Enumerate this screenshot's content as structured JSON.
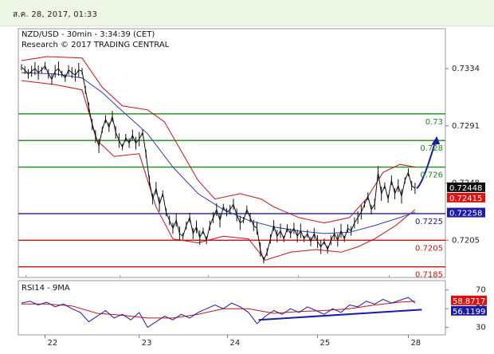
{
  "header": {
    "date_time": "ส.ค. 28, 2017, 01:33"
  },
  "chart_data": [
    {
      "type": "line",
      "title": "NZD/USD - 30min - 3:34:39 (CET)",
      "subtitle": "Research © 2017 TRADING CENTRAL",
      "x_ticks": [
        "22",
        "23",
        "24",
        "25",
        "28"
      ],
      "y_ticks": [
        "0.7334",
        "0.7291",
        "0.7248",
        "0.7205"
      ],
      "ylim": [
        0.7177,
        0.7364
      ],
      "levels": [
        {
          "label": "0.73",
          "value": 0.73,
          "color": "#1a8a1a"
        },
        {
          "label": "0.728",
          "value": 0.728,
          "color": "#1a8a1a"
        },
        {
          "label": "0.726",
          "value": 0.726,
          "color": "#1a8a1a"
        },
        {
          "label": "0.7225",
          "value": 0.7225,
          "color": "#1c1ca8"
        },
        {
          "label": "0.7205",
          "value": 0.7205,
          "color": "#cc1111"
        },
        {
          "label": "0.7185",
          "value": 0.7185,
          "color": "#cc1111"
        }
      ],
      "price_tags": [
        {
          "label": "0.72448",
          "value": 0.72448,
          "bg": "#111111"
        },
        {
          "label": "0.72415",
          "value": 0.72415,
          "bg": "#dd1111"
        },
        {
          "label": "0.72258",
          "value": 0.72258,
          "bg": "#1c1ca8"
        }
      ],
      "price_series": [
        {
          "x": 0,
          "y": 0.7335
        },
        {
          "x": 4,
          "y": 0.7333
        },
        {
          "x": 8,
          "y": 0.733
        },
        {
          "x": 12,
          "y": 0.7332
        },
        {
          "x": 16,
          "y": 0.7334
        },
        {
          "x": 20,
          "y": 0.7331
        },
        {
          "x": 24,
          "y": 0.7333
        },
        {
          "x": 28,
          "y": 0.7336
        },
        {
          "x": 32,
          "y": 0.733
        },
        {
          "x": 36,
          "y": 0.7326
        },
        {
          "x": 40,
          "y": 0.7332
        },
        {
          "x": 44,
          "y": 0.7334
        },
        {
          "x": 48,
          "y": 0.733
        },
        {
          "x": 52,
          "y": 0.7327
        },
        {
          "x": 56,
          "y": 0.7333
        },
        {
          "x": 60,
          "y": 0.7331
        },
        {
          "x": 64,
          "y": 0.7329
        },
        {
          "x": 68,
          "y": 0.7333
        },
        {
          "x": 72,
          "y": 0.7332
        },
        {
          "x": 76,
          "y": 0.7318
        },
        {
          "x": 80,
          "y": 0.7305
        },
        {
          "x": 84,
          "y": 0.7292
        },
        {
          "x": 88,
          "y": 0.7283
        },
        {
          "x": 92,
          "y": 0.7276
        },
        {
          "x": 96,
          "y": 0.7288
        },
        {
          "x": 100,
          "y": 0.7296
        },
        {
          "x": 104,
          "y": 0.729
        },
        {
          "x": 108,
          "y": 0.7298
        },
        {
          "x": 112,
          "y": 0.7286
        },
        {
          "x": 116,
          "y": 0.728
        },
        {
          "x": 120,
          "y": 0.7275
        },
        {
          "x": 124,
          "y": 0.7282
        },
        {
          "x": 128,
          "y": 0.7278
        },
        {
          "x": 132,
          "y": 0.7284
        },
        {
          "x": 136,
          "y": 0.7278
        },
        {
          "x": 140,
          "y": 0.7281
        },
        {
          "x": 144,
          "y": 0.7286
        },
        {
          "x": 148,
          "y": 0.727
        },
        {
          "x": 152,
          "y": 0.725
        },
        {
          "x": 156,
          "y": 0.7236
        },
        {
          "x": 160,
          "y": 0.7244
        },
        {
          "x": 164,
          "y": 0.7232
        },
        {
          "x": 168,
          "y": 0.724
        },
        {
          "x": 172,
          "y": 0.7226
        },
        {
          "x": 176,
          "y": 0.722
        },
        {
          "x": 180,
          "y": 0.7214
        },
        {
          "x": 184,
          "y": 0.722
        },
        {
          "x": 188,
          "y": 0.721
        },
        {
          "x": 192,
          "y": 0.7208
        },
        {
          "x": 196,
          "y": 0.7216
        },
        {
          "x": 200,
          "y": 0.7222
        },
        {
          "x": 204,
          "y": 0.721
        },
        {
          "x": 208,
          "y": 0.7215
        },
        {
          "x": 212,
          "y": 0.7207
        },
        {
          "x": 216,
          "y": 0.7212
        },
        {
          "x": 220,
          "y": 0.7205
        },
        {
          "x": 224,
          "y": 0.7216
        },
        {
          "x": 228,
          "y": 0.7222
        },
        {
          "x": 232,
          "y": 0.7228
        },
        {
          "x": 236,
          "y": 0.722
        },
        {
          "x": 240,
          "y": 0.723
        },
        {
          "x": 244,
          "y": 0.7226
        },
        {
          "x": 248,
          "y": 0.7228
        },
        {
          "x": 252,
          "y": 0.7232
        },
        {
          "x": 256,
          "y": 0.7224
        },
        {
          "x": 260,
          "y": 0.7218
        },
        {
          "x": 264,
          "y": 0.722
        },
        {
          "x": 268,
          "y": 0.7228
        },
        {
          "x": 272,
          "y": 0.7222
        },
        {
          "x": 276,
          "y": 0.7216
        },
        {
          "x": 280,
          "y": 0.7214
        },
        {
          "x": 284,
          "y": 0.7198
        },
        {
          "x": 288,
          "y": 0.719
        },
        {
          "x": 292,
          "y": 0.7196
        },
        {
          "x": 296,
          "y": 0.7206
        },
        {
          "x": 300,
          "y": 0.7216
        },
        {
          "x": 304,
          "y": 0.7208
        },
        {
          "x": 308,
          "y": 0.7212
        },
        {
          "x": 312,
          "y": 0.7206
        },
        {
          "x": 316,
          "y": 0.7214
        },
        {
          "x": 320,
          "y": 0.721
        },
        {
          "x": 324,
          "y": 0.7214
        },
        {
          "x": 328,
          "y": 0.7208
        },
        {
          "x": 332,
          "y": 0.7212
        },
        {
          "x": 336,
          "y": 0.7206
        },
        {
          "x": 340,
          "y": 0.721
        },
        {
          "x": 344,
          "y": 0.7204
        },
        {
          "x": 348,
          "y": 0.721
        },
        {
          "x": 352,
          "y": 0.7204
        },
        {
          "x": 356,
          "y": 0.72
        },
        {
          "x": 360,
          "y": 0.7204
        },
        {
          "x": 364,
          "y": 0.7198
        },
        {
          "x": 368,
          "y": 0.7205
        },
        {
          "x": 372,
          "y": 0.721
        },
        {
          "x": 376,
          "y": 0.7205
        },
        {
          "x": 380,
          "y": 0.7212
        },
        {
          "x": 384,
          "y": 0.7206
        },
        {
          "x": 388,
          "y": 0.7214
        },
        {
          "x": 392,
          "y": 0.7212
        },
        {
          "x": 396,
          "y": 0.7218
        },
        {
          "x": 400,
          "y": 0.7222
        },
        {
          "x": 404,
          "y": 0.7226
        },
        {
          "x": 408,
          "y": 0.7232
        },
        {
          "x": 412,
          "y": 0.7238
        },
        {
          "x": 416,
          "y": 0.7228
        },
        {
          "x": 420,
          "y": 0.7232
        },
        {
          "x": 424,
          "y": 0.7256
        },
        {
          "x": 428,
          "y": 0.724
        },
        {
          "x": 432,
          "y": 0.7246
        },
        {
          "x": 436,
          "y": 0.7236
        },
        {
          "x": 440,
          "y": 0.725
        },
        {
          "x": 444,
          "y": 0.724
        },
        {
          "x": 448,
          "y": 0.7246
        },
        {
          "x": 452,
          "y": 0.7238
        },
        {
          "x": 456,
          "y": 0.725
        },
        {
          "x": 460,
          "y": 0.7256
        },
        {
          "x": 464,
          "y": 0.7246
        },
        {
          "x": 468,
          "y": 0.7244
        }
      ],
      "ma_series": [
        {
          "x": 0,
          "y": 0.7331
        },
        {
          "x": 40,
          "y": 0.733
        },
        {
          "x": 72,
          "y": 0.7327
        },
        {
          "x": 96,
          "y": 0.7316
        },
        {
          "x": 120,
          "y": 0.7302
        },
        {
          "x": 150,
          "y": 0.7285
        },
        {
          "x": 180,
          "y": 0.726
        },
        {
          "x": 210,
          "y": 0.724
        },
        {
          "x": 240,
          "y": 0.7228
        },
        {
          "x": 270,
          "y": 0.722
        },
        {
          "x": 300,
          "y": 0.7215
        },
        {
          "x": 330,
          "y": 0.7212
        },
        {
          "x": 360,
          "y": 0.721
        },
        {
          "x": 390,
          "y": 0.7211
        },
        {
          "x": 420,
          "y": 0.7216
        },
        {
          "x": 450,
          "y": 0.7222
        },
        {
          "x": 468,
          "y": 0.7226
        }
      ],
      "bb_upper": [
        {
          "x": 0,
          "y": 0.734
        },
        {
          "x": 30,
          "y": 0.7343
        },
        {
          "x": 72,
          "y": 0.7342
        },
        {
          "x": 96,
          "y": 0.732
        },
        {
          "x": 120,
          "y": 0.7306
        },
        {
          "x": 150,
          "y": 0.7303
        },
        {
          "x": 170,
          "y": 0.7294
        },
        {
          "x": 190,
          "y": 0.7272
        },
        {
          "x": 210,
          "y": 0.725
        },
        {
          "x": 230,
          "y": 0.7236
        },
        {
          "x": 260,
          "y": 0.724
        },
        {
          "x": 285,
          "y": 0.7236
        },
        {
          "x": 300,
          "y": 0.723
        },
        {
          "x": 330,
          "y": 0.7222
        },
        {
          "x": 360,
          "y": 0.7218
        },
        {
          "x": 390,
          "y": 0.7222
        },
        {
          "x": 410,
          "y": 0.7236
        },
        {
          "x": 430,
          "y": 0.7256
        },
        {
          "x": 450,
          "y": 0.7262
        },
        {
          "x": 468,
          "y": 0.726
        }
      ],
      "bb_lower": [
        {
          "x": 0,
          "y": 0.7325
        },
        {
          "x": 40,
          "y": 0.7322
        },
        {
          "x": 72,
          "y": 0.7318
        },
        {
          "x": 90,
          "y": 0.728
        },
        {
          "x": 110,
          "y": 0.7268
        },
        {
          "x": 140,
          "y": 0.727
        },
        {
          "x": 160,
          "y": 0.723
        },
        {
          "x": 180,
          "y": 0.7206
        },
        {
          "x": 210,
          "y": 0.7203
        },
        {
          "x": 240,
          "y": 0.7208
        },
        {
          "x": 270,
          "y": 0.7206
        },
        {
          "x": 290,
          "y": 0.719
        },
        {
          "x": 320,
          "y": 0.7196
        },
        {
          "x": 350,
          "y": 0.7198
        },
        {
          "x": 380,
          "y": 0.7196
        },
        {
          "x": 400,
          "y": 0.72
        },
        {
          "x": 420,
          "y": 0.7206
        },
        {
          "x": 445,
          "y": 0.7216
        },
        {
          "x": 468,
          "y": 0.7228
        }
      ],
      "arrow": {
        "from": {
          "x": 470,
          "y": 0.7244
        },
        "to": {
          "x": 492,
          "y": 0.7279
        }
      }
    },
    {
      "type": "line",
      "title": "RSI14 - 9MA",
      "y_ticks": [
        "70",
        "50",
        "30"
      ],
      "ylim": [
        22,
        80
      ],
      "value_tags": [
        {
          "label": "58.8717",
          "value": 58.8717,
          "bg": "#dd1111"
        },
        {
          "label": "56.1199",
          "value": 56.1199,
          "bg": "#1c1ca8"
        }
      ],
      "rsi_series": [
        {
          "x": 0,
          "y": 56
        },
        {
          "x": 10,
          "y": 58
        },
        {
          "x": 20,
          "y": 54
        },
        {
          "x": 30,
          "y": 57
        },
        {
          "x": 40,
          "y": 52
        },
        {
          "x": 50,
          "y": 55
        },
        {
          "x": 60,
          "y": 50
        },
        {
          "x": 70,
          "y": 46
        },
        {
          "x": 80,
          "y": 36
        },
        {
          "x": 90,
          "y": 42
        },
        {
          "x": 100,
          "y": 48
        },
        {
          "x": 110,
          "y": 40
        },
        {
          "x": 120,
          "y": 44
        },
        {
          "x": 130,
          "y": 38
        },
        {
          "x": 140,
          "y": 46
        },
        {
          "x": 150,
          "y": 30
        },
        {
          "x": 160,
          "y": 36
        },
        {
          "x": 170,
          "y": 42
        },
        {
          "x": 180,
          "y": 38
        },
        {
          "x": 190,
          "y": 44
        },
        {
          "x": 200,
          "y": 40
        },
        {
          "x": 210,
          "y": 46
        },
        {
          "x": 220,
          "y": 50
        },
        {
          "x": 230,
          "y": 54
        },
        {
          "x": 240,
          "y": 50
        },
        {
          "x": 250,
          "y": 56
        },
        {
          "x": 260,
          "y": 52
        },
        {
          "x": 270,
          "y": 46
        },
        {
          "x": 280,
          "y": 34
        },
        {
          "x": 290,
          "y": 42
        },
        {
          "x": 300,
          "y": 48
        },
        {
          "x": 310,
          "y": 44
        },
        {
          "x": 320,
          "y": 50
        },
        {
          "x": 330,
          "y": 46
        },
        {
          "x": 340,
          "y": 52
        },
        {
          "x": 350,
          "y": 48
        },
        {
          "x": 360,
          "y": 44
        },
        {
          "x": 370,
          "y": 50
        },
        {
          "x": 380,
          "y": 46
        },
        {
          "x": 390,
          "y": 54
        },
        {
          "x": 400,
          "y": 52
        },
        {
          "x": 410,
          "y": 58
        },
        {
          "x": 420,
          "y": 55
        },
        {
          "x": 430,
          "y": 60
        },
        {
          "x": 440,
          "y": 56
        },
        {
          "x": 450,
          "y": 59
        },
        {
          "x": 460,
          "y": 62
        },
        {
          "x": 468,
          "y": 56
        }
      ],
      "ma_series": [
        {
          "x": 0,
          "y": 55
        },
        {
          "x": 30,
          "y": 55
        },
        {
          "x": 60,
          "y": 53
        },
        {
          "x": 90,
          "y": 45
        },
        {
          "x": 120,
          "y": 43
        },
        {
          "x": 150,
          "y": 40
        },
        {
          "x": 180,
          "y": 40
        },
        {
          "x": 210,
          "y": 44
        },
        {
          "x": 240,
          "y": 50
        },
        {
          "x": 270,
          "y": 50
        },
        {
          "x": 300,
          "y": 45
        },
        {
          "x": 330,
          "y": 47
        },
        {
          "x": 360,
          "y": 48
        },
        {
          "x": 390,
          "y": 50
        },
        {
          "x": 420,
          "y": 54
        },
        {
          "x": 450,
          "y": 57
        },
        {
          "x": 468,
          "y": 58
        }
      ],
      "trendline": {
        "from": {
          "x": 282,
          "y": 38
        },
        "to": {
          "x": 476,
          "y": 49
        }
      }
    }
  ],
  "colors": {
    "price": "#111111",
    "ma_blue": "#2b3fb8",
    "bollinger": "#cc1111",
    "green_level": "#1a8a1a",
    "blue_level": "#1c1ca8",
    "red_level": "#cc1111",
    "arrow": "#1c1ca8",
    "rsi_line": "#1c1ca8",
    "rsi_ma": "#cc1111"
  }
}
